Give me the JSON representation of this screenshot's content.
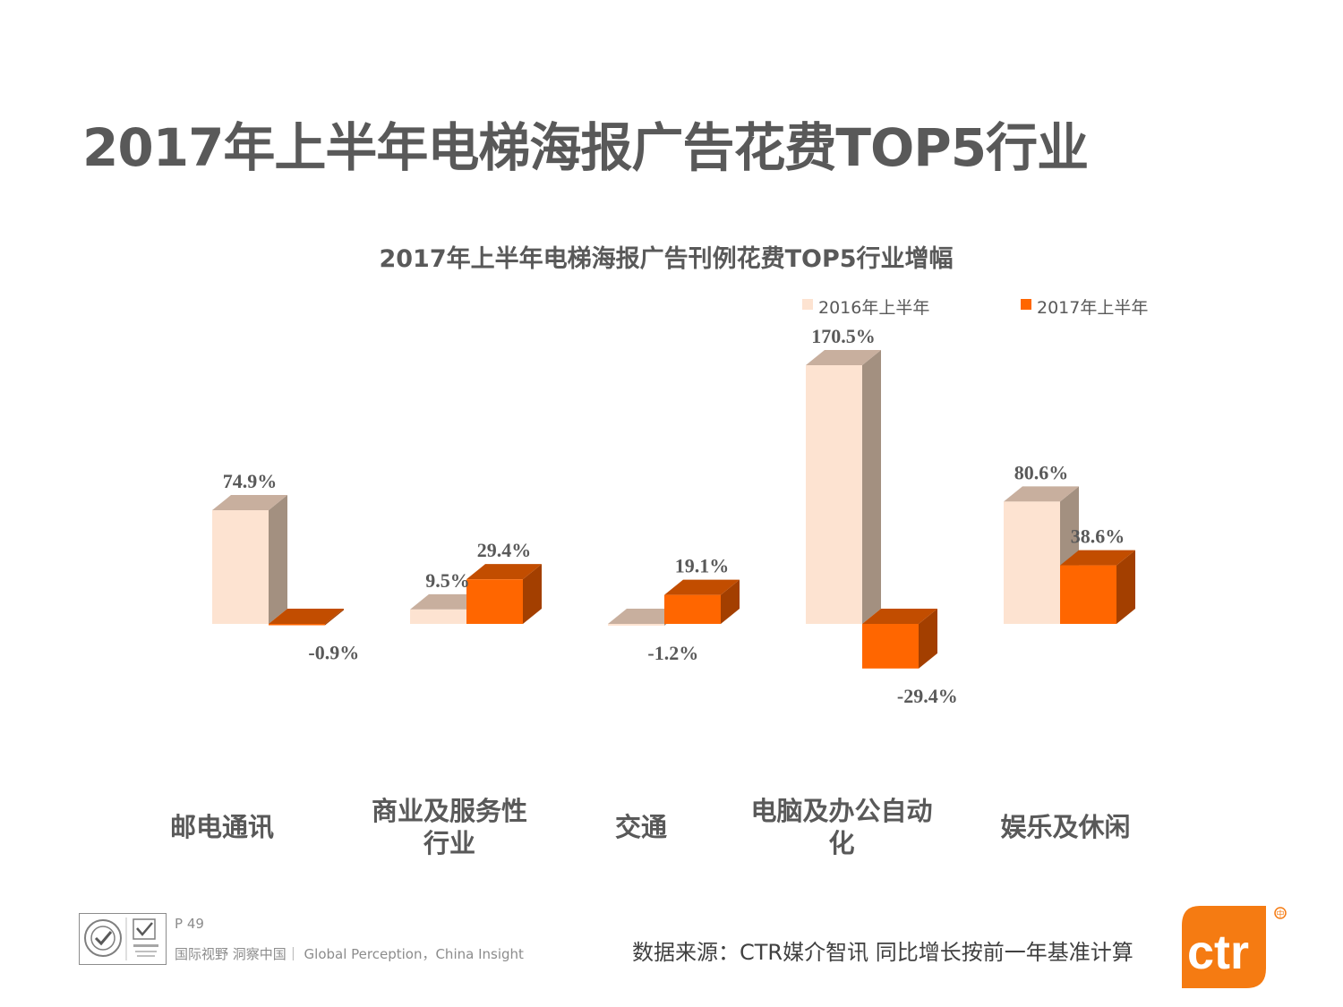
{
  "page": {
    "title": "2017年上半年电梯海报广告花费TOP5行业",
    "page_number": "P 49",
    "tagline": "国际视野  洞察中国｜ Global Perception，China Insight",
    "source": "数据来源：CTR媒介智讯    同比增长按前一年基准计算",
    "logo_text": "ctr",
    "logo_badge": "中",
    "cert_icons": [
      "sgs-certification-icon",
      "ukas-certification-icon"
    ]
  },
  "chart_data": {
    "type": "bar",
    "title": "2017年上半年电梯海报广告刊例花费TOP5行业增幅",
    "categories": [
      "邮电通讯",
      "商业及服务性行业",
      "交通",
      "电脑及办公自动化",
      "娱乐及休闲"
    ],
    "category_label_lines": [
      [
        "邮电通讯"
      ],
      [
        "商业及服务性",
        "行业"
      ],
      [
        "交通"
      ],
      [
        "电脑及办公自动",
        "化"
      ],
      [
        "娱乐及休闲"
      ]
    ],
    "series": [
      {
        "name": "2016年上半年",
        "values": [
          74.9,
          9.5,
          -1.2,
          170.5,
          80.6
        ],
        "labels": [
          "74.9%",
          "9.5%",
          "-1.2%",
          "170.5%",
          "80.6%"
        ],
        "color": "#fde3d1",
        "top_color": "#c8af9e",
        "side_color": "#a39080"
      },
      {
        "name": "2017年上半年",
        "values": [
          -0.9,
          29.4,
          19.1,
          -29.4,
          38.6
        ],
        "labels": [
          "-0.9%",
          "29.4%",
          "19.1%",
          "-29.4%",
          "38.6%"
        ],
        "color": "#ff6600",
        "top_color": "#c24d00",
        "side_color": "#a33f00"
      }
    ],
    "unit": "%",
    "legend_position": "top-right",
    "grid": false,
    "style": "3d-column"
  }
}
